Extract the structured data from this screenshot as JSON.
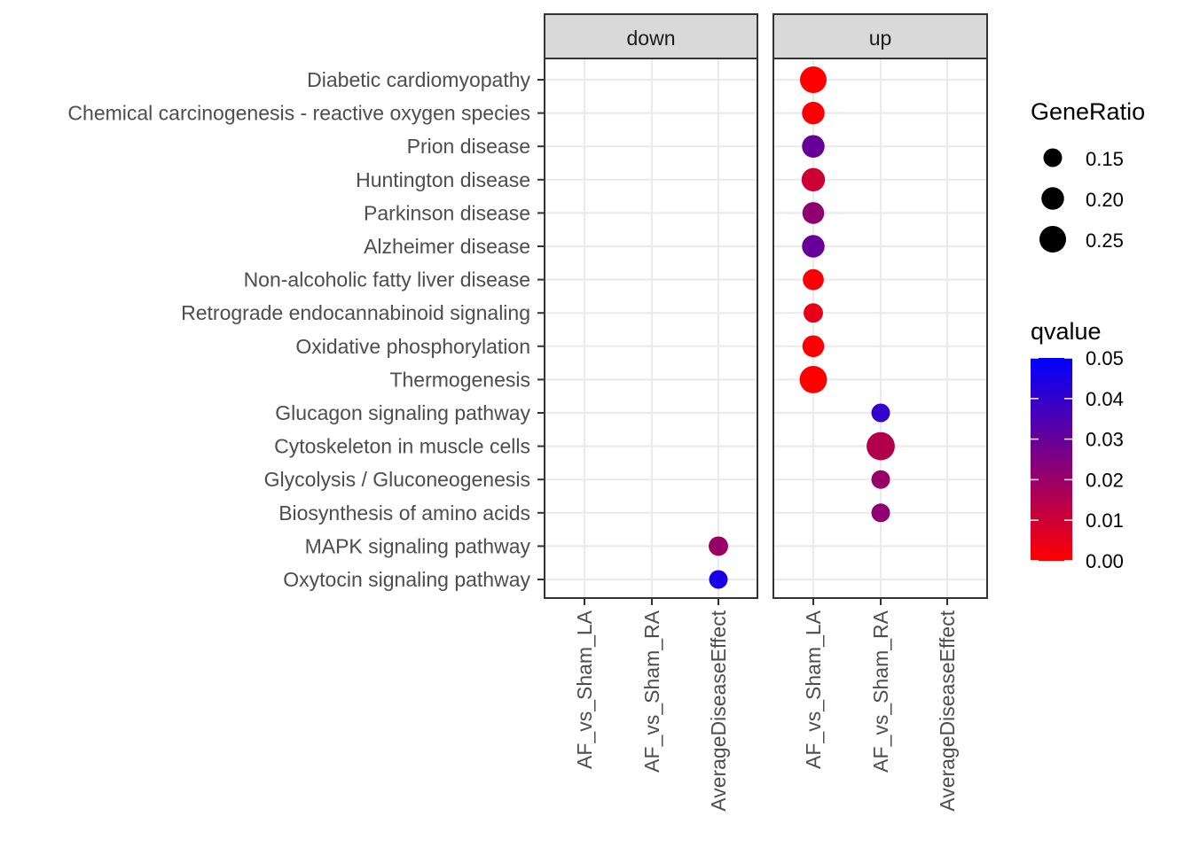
{
  "chart_data": {
    "type": "scatter",
    "facets": [
      "down",
      "up"
    ],
    "x_categories": [
      "AF_vs_Sham_LA",
      "AF_vs_Sham_RA",
      "AverageDiseaseEffect"
    ],
    "y_categories": [
      "Diabetic cardiomyopathy",
      "Chemical carcinogenesis - reactive oxygen species",
      "Prion disease",
      "Huntington disease",
      "Parkinson disease",
      "Alzheimer disease",
      "Non-alcoholic fatty liver disease",
      "Retrograde endocannabinoid signaling",
      "Oxidative phosphorylation",
      "Thermogenesis",
      "Glucagon signaling pathway",
      "Cytoskeleton in muscle cells",
      "Glycolysis / Gluconeogenesis",
      "Biosynthesis of amino acids",
      "MAPK signaling pathway",
      "Oxytocin signaling pathway"
    ],
    "points": [
      {
        "facet": "up",
        "x": "AF_vs_Sham_LA",
        "y": "Diabetic cardiomyopathy",
        "gene_ratio": 0.25,
        "qvalue": 0.0
      },
      {
        "facet": "up",
        "x": "AF_vs_Sham_LA",
        "y": "Chemical carcinogenesis - reactive oxygen species",
        "gene_ratio": 0.2,
        "qvalue": 0.0005
      },
      {
        "facet": "up",
        "x": "AF_vs_Sham_LA",
        "y": "Prion disease",
        "gene_ratio": 0.2,
        "qvalue": 0.03
      },
      {
        "facet": "up",
        "x": "AF_vs_Sham_LA",
        "y": "Huntington disease",
        "gene_ratio": 0.21,
        "qvalue": 0.01
      },
      {
        "facet": "up",
        "x": "AF_vs_Sham_LA",
        "y": "Parkinson disease",
        "gene_ratio": 0.19,
        "qvalue": 0.022
      },
      {
        "facet": "up",
        "x": "AF_vs_Sham_LA",
        "y": "Alzheimer disease",
        "gene_ratio": 0.2,
        "qvalue": 0.03
      },
      {
        "facet": "up",
        "x": "AF_vs_Sham_LA",
        "y": "Non-alcoholic fatty liver disease",
        "gene_ratio": 0.18,
        "qvalue": 0.001
      },
      {
        "facet": "up",
        "x": "AF_vs_Sham_LA",
        "y": "Retrograde endocannabinoid signaling",
        "gene_ratio": 0.16,
        "qvalue": 0.005
      },
      {
        "facet": "up",
        "x": "AF_vs_Sham_LA",
        "y": "Oxidative phosphorylation",
        "gene_ratio": 0.19,
        "qvalue": 0.0005
      },
      {
        "facet": "up",
        "x": "AF_vs_Sham_LA",
        "y": "Thermogenesis",
        "gene_ratio": 0.26,
        "qvalue": 0.0
      },
      {
        "facet": "up",
        "x": "AF_vs_Sham_RA",
        "y": "Glucagon signaling pathway",
        "gene_ratio": 0.15,
        "qvalue": 0.04
      },
      {
        "facet": "up",
        "x": "AF_vs_Sham_RA",
        "y": "Cytoskeleton in muscle cells",
        "gene_ratio": 0.27,
        "qvalue": 0.015
      },
      {
        "facet": "up",
        "x": "AF_vs_Sham_RA",
        "y": "Glycolysis / Gluconeogenesis",
        "gene_ratio": 0.15,
        "qvalue": 0.02
      },
      {
        "facet": "up",
        "x": "AF_vs_Sham_RA",
        "y": "Biosynthesis of amino acids",
        "gene_ratio": 0.15,
        "qvalue": 0.022
      },
      {
        "facet": "down",
        "x": "AverageDiseaseEffect",
        "y": "MAPK signaling pathway",
        "gene_ratio": 0.16,
        "qvalue": 0.02
      },
      {
        "facet": "down",
        "x": "AverageDiseaseEffect",
        "y": "Oxytocin signaling pathway",
        "gene_ratio": 0.15,
        "qvalue": 0.045
      }
    ],
    "size_legend": {
      "title": "GeneRatio",
      "values": [
        0.15,
        0.2,
        0.25
      ],
      "labels": [
        "0.15",
        "0.20",
        "0.25"
      ]
    },
    "color_legend": {
      "title": "qvalue",
      "range": [
        0,
        0.05
      ],
      "low_color": "#FF0000",
      "high_color": "#0000FF",
      "labels": [
        "0.00",
        "0.01",
        "0.02",
        "0.03",
        "0.04",
        "0.05"
      ]
    },
    "xlabel": "",
    "ylabel": "",
    "panel_background": "#FFFFFF",
    "strip_background": "#D9D9D9",
    "grid": true,
    "legend_position": "right"
  }
}
